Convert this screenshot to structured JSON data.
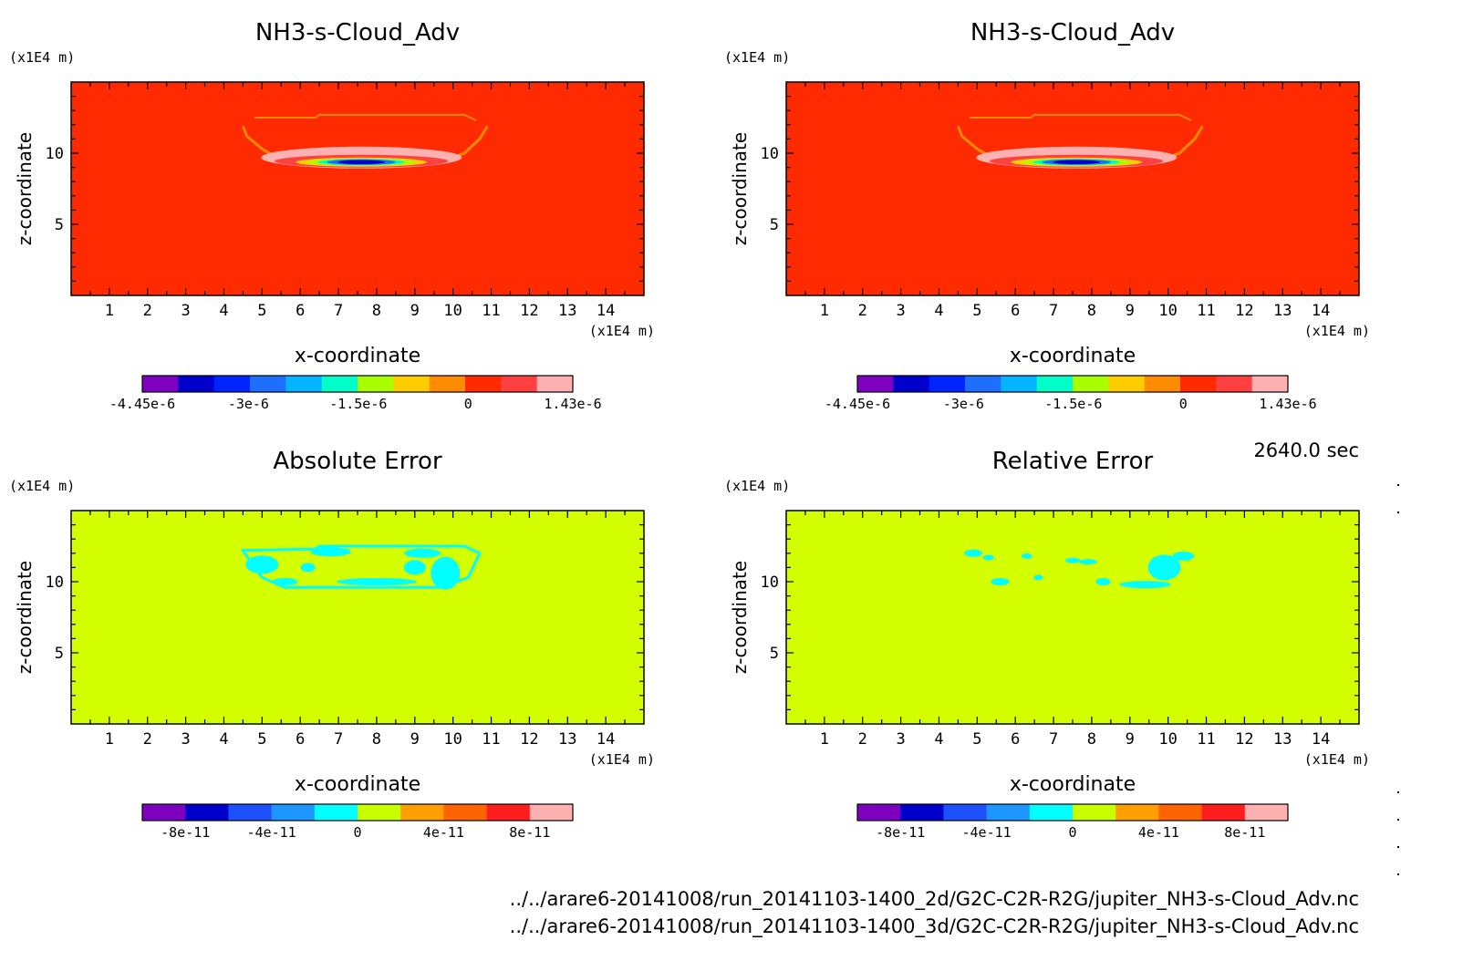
{
  "time_label": "2640.0 sec",
  "footer": {
    "file_2d": "../../arare6-20141008/run_20141103-1400_2d/G2C-C2R-R2G/jupiter_NH3-s-Cloud_Adv.nc",
    "file_3d": "../../arare6-20141008/run_20141103-1400_3d/G2C-C2R-R2G/jupiter_NH3-s-Cloud_Adv.nc"
  },
  "colors": {
    "field_background": "#ff2a00",
    "error_background": "#d4ff00",
    "cloud_edge": "#ff8c00",
    "error_highlight": "#00ffff"
  },
  "chart_data": [
    {
      "type": "heatmap",
      "title": "NH3-s-Cloud_Adv",
      "xlabel": "x-coordinate",
      "ylabel": "z-coordinate",
      "x_unit": "(x1E4 m)",
      "y_unit": "(x1E4 m)",
      "xlim": [
        0,
        15
      ],
      "ylim": [
        0,
        15
      ],
      "x_ticks": [
        "1",
        "2",
        "3",
        "4",
        "5",
        "6",
        "7",
        "8",
        "9",
        "10",
        "11",
        "12",
        "13",
        "14"
      ],
      "y_ticks": [
        "5",
        "10"
      ],
      "value_range": [
        -4.45e-06,
        1.43e-06
      ],
      "colorbar": {
        "labels": [
          "-4.45e-6",
          "-3e-6",
          "-1.5e-6",
          "0",
          "1.43e-6"
        ],
        "colors": [
          "#7f00bf",
          "#0000cc",
          "#0024ff",
          "#1e6eff",
          "#00b4ff",
          "#00ffc8",
          "#a8ff00",
          "#ffcc00",
          "#ff8c00",
          "#ff2a00",
          "#ff4040",
          "#ffb0b0"
        ]
      },
      "source": "2d"
    },
    {
      "type": "heatmap",
      "title": "NH3-s-Cloud_Adv",
      "xlabel": "x-coordinate",
      "ylabel": "z-coordinate",
      "x_unit": "(x1E4 m)",
      "y_unit": "(x1E4 m)",
      "xlim": [
        0,
        15
      ],
      "ylim": [
        0,
        15
      ],
      "x_ticks": [
        "1",
        "2",
        "3",
        "4",
        "5",
        "6",
        "7",
        "8",
        "9",
        "10",
        "11",
        "12",
        "13",
        "14"
      ],
      "y_ticks": [
        "5",
        "10"
      ],
      "value_range": [
        -4.45e-06,
        1.43e-06
      ],
      "colorbar": {
        "labels": [
          "-4.45e-6",
          "-3e-6",
          "-1.5e-6",
          "0",
          "1.43e-6"
        ],
        "colors": [
          "#7f00bf",
          "#0000cc",
          "#0024ff",
          "#1e6eff",
          "#00b4ff",
          "#00ffc8",
          "#a8ff00",
          "#ffcc00",
          "#ff8c00",
          "#ff2a00",
          "#ff4040",
          "#ffb0b0"
        ]
      },
      "source": "3d"
    },
    {
      "type": "heatmap",
      "title": "Absolute Error",
      "xlabel": "x-coordinate",
      "ylabel": "z-coordinate",
      "x_unit": "(x1E4 m)",
      "y_unit": "(x1E4 m)",
      "xlim": [
        0,
        15
      ],
      "ylim": [
        0,
        15
      ],
      "x_ticks": [
        "1",
        "2",
        "3",
        "4",
        "5",
        "6",
        "7",
        "8",
        "9",
        "10",
        "11",
        "12",
        "13",
        "14"
      ],
      "y_ticks": [
        "5",
        "10"
      ],
      "value_range": [
        -1e-10,
        1e-10
      ],
      "colorbar": {
        "labels": [
          "-8e-11",
          "-4e-11",
          "0",
          "4e-11",
          "8e-11"
        ],
        "colors": [
          "#7f00bf",
          "#0000cc",
          "#1e50ff",
          "#1e96ff",
          "#00ffff",
          "#c8ff00",
          "#ffa000",
          "#ff6400",
          "#ff1e1e",
          "#ffb0b0"
        ]
      }
    },
    {
      "type": "heatmap",
      "title": "Relative Error",
      "xlabel": "x-coordinate",
      "ylabel": "z-coordinate",
      "x_unit": "(x1E4 m)",
      "y_unit": "(x1E4 m)",
      "xlim": [
        0,
        15
      ],
      "ylim": [
        0,
        15
      ],
      "x_ticks": [
        "1",
        "2",
        "3",
        "4",
        "5",
        "6",
        "7",
        "8",
        "9",
        "10",
        "11",
        "12",
        "13",
        "14"
      ],
      "y_ticks": [
        "5",
        "10"
      ],
      "value_range": [
        -1e-10,
        1e-10
      ],
      "colorbar": {
        "labels": [
          "-8e-11",
          "-4e-11",
          "0",
          "4e-11",
          "8e-11"
        ],
        "colors": [
          "#7f00bf",
          "#0000cc",
          "#1e50ff",
          "#1e96ff",
          "#00ffff",
          "#c8ff00",
          "#ffa000",
          "#ff6400",
          "#ff1e1e",
          "#ffb0b0"
        ]
      }
    }
  ]
}
